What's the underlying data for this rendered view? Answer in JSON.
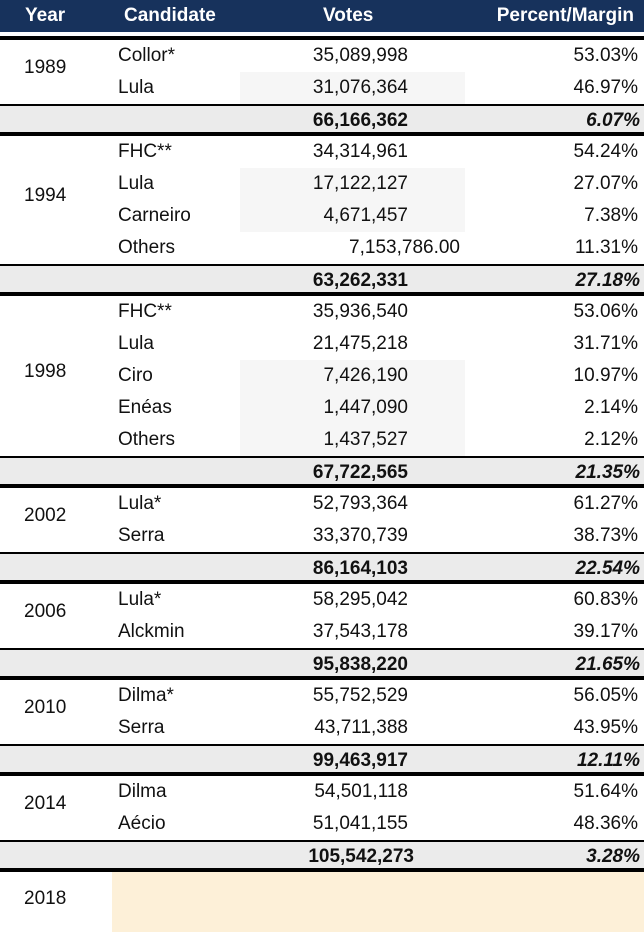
{
  "header": {
    "year": "Year",
    "candidate": "Candidate",
    "votes": "Votes",
    "percent": "Percent/Margin"
  },
  "elections": [
    {
      "year": "1989",
      "rows": [
        {
          "candidate": "Collor*",
          "votes": "35,089,998",
          "percent": "53.03%"
        },
        {
          "candidate": "Lula",
          "votes": "31,076,364",
          "percent": "46.97%"
        }
      ],
      "total": {
        "votes": "66,166,362",
        "margin": "6.07%"
      }
    },
    {
      "year": "1994",
      "rows": [
        {
          "candidate": "FHC**",
          "votes": "34,314,961",
          "percent": "54.24%"
        },
        {
          "candidate": "Lula",
          "votes": "17,122,127",
          "percent": "27.07%"
        },
        {
          "candidate": "Carneiro",
          "votes": "4,671,457",
          "percent": "7.38%"
        },
        {
          "candidate": "Others",
          "votes": "7,153,786.00",
          "percent": "11.31%"
        }
      ],
      "total": {
        "votes": "63,262,331",
        "margin": "27.18%"
      }
    },
    {
      "year": "1998",
      "rows": [
        {
          "candidate": "FHC**",
          "votes": "35,936,540",
          "percent": "53.06%"
        },
        {
          "candidate": "Lula",
          "votes": "21,475,218",
          "percent": "31.71%"
        },
        {
          "candidate": "Ciro",
          "votes": "7,426,190",
          "percent": "10.97%"
        },
        {
          "candidate": "Enéas",
          "votes": "1,447,090",
          "percent": "2.14%"
        },
        {
          "candidate": "Others",
          "votes": "1,437,527",
          "percent": "2.12%"
        }
      ],
      "total": {
        "votes": "67,722,565",
        "margin": "21.35%"
      }
    },
    {
      "year": "2002",
      "rows": [
        {
          "candidate": "Lula*",
          "votes": "52,793,364",
          "percent": "61.27%"
        },
        {
          "candidate": "Serra",
          "votes": "33,370,739",
          "percent": "38.73%"
        }
      ],
      "total": {
        "votes": "86,164,103",
        "margin": "22.54%"
      }
    },
    {
      "year": "2006",
      "rows": [
        {
          "candidate": "Lula*",
          "votes": "58,295,042",
          "percent": "60.83%"
        },
        {
          "candidate": "Alckmin",
          "votes": "37,543,178",
          "percent": "39.17%"
        }
      ],
      "total": {
        "votes": "95,838,220",
        "margin": "21.65%"
      }
    },
    {
      "year": "2010",
      "rows": [
        {
          "candidate": "Dilma*",
          "votes": "55,752,529",
          "percent": "56.05%"
        },
        {
          "candidate": "Serra",
          "votes": "43,711,388",
          "percent": "43.95%"
        }
      ],
      "total": {
        "votes": "99,463,917",
        "margin": "12.11%"
      }
    },
    {
      "year": "2014",
      "rows": [
        {
          "candidate": "Dilma",
          "votes": "54,501,118",
          "percent": "51.64%"
        },
        {
          "candidate": "Aécio",
          "votes": "51,041,155",
          "percent": "48.36%"
        }
      ],
      "total": {
        "votes": "105,542,273",
        "margin": "3.28%"
      }
    }
  ],
  "pending": {
    "year": "2018"
  }
}
